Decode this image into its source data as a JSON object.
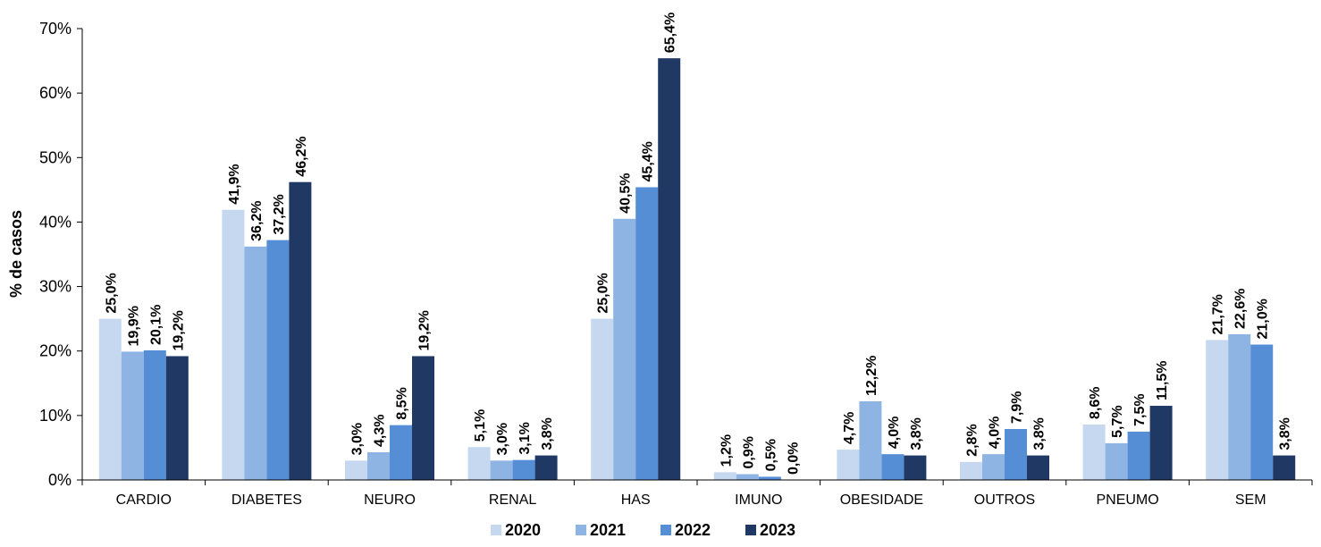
{
  "chart_data": {
    "type": "bar",
    "ylabel": "% de casos",
    "ylim": [
      0,
      70
    ],
    "yticks": [
      "0%",
      "10%",
      "20%",
      "30%",
      "40%",
      "50%",
      "60%",
      "70%"
    ],
    "categories": [
      "CARDIO",
      "DIABETES",
      "NEURO",
      "RENAL",
      "HAS",
      "IMUNO",
      "OBESIDADE",
      "OUTROS",
      "PNEUMO",
      "SEM"
    ],
    "legend_position": "bottom",
    "series": [
      {
        "name": "2020",
        "color": "#c6d8f0",
        "values": [
          25.0,
          41.9,
          3.0,
          5.1,
          25.0,
          1.2,
          4.7,
          2.8,
          8.6,
          21.7
        ],
        "labels": [
          "25,0%",
          "41,9%",
          "3,0%",
          "5,1%",
          "25,0%",
          "1,2%",
          "4,7%",
          "2,8%",
          "8,6%",
          "21,7%"
        ]
      },
      {
        "name": "2021",
        "color": "#8eb4e3",
        "values": [
          19.9,
          36.2,
          4.3,
          3.0,
          40.5,
          0.9,
          12.2,
          4.0,
          5.7,
          22.6
        ],
        "labels": [
          "19,9%",
          "36,2%",
          "4,3%",
          "3,0%",
          "40,5%",
          "0,9%",
          "12,2%",
          "4,0%",
          "5,7%",
          "22,6%"
        ]
      },
      {
        "name": "2022",
        "color": "#558ed5",
        "values": [
          20.1,
          37.2,
          8.5,
          3.1,
          45.4,
          0.5,
          4.0,
          7.9,
          7.5,
          21.0
        ],
        "labels": [
          "20,1%",
          "37,2%",
          "8,5%",
          "3,1%",
          "45,4%",
          "0,5%",
          "4,0%",
          "7,9%",
          "7,5%",
          "21,0%"
        ]
      },
      {
        "name": "2023",
        "color": "#1f3864",
        "values": [
          19.2,
          46.2,
          19.2,
          3.8,
          65.4,
          0.0,
          3.8,
          3.8,
          11.5,
          3.8
        ],
        "labels": [
          "19,2%",
          "46,2%",
          "19,2%",
          "3,8%",
          "65,4%",
          "0,0%",
          "3,8%",
          "3,8%",
          "11,5%",
          "3,8%"
        ]
      }
    ]
  }
}
